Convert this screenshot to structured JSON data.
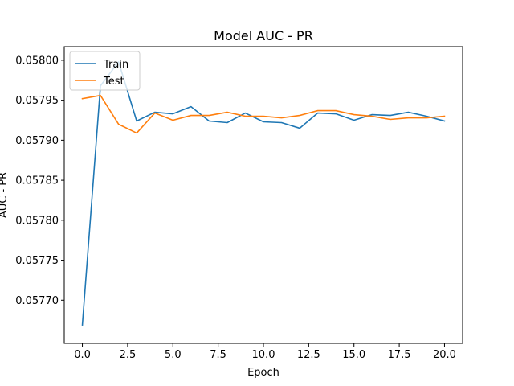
{
  "chart_data": {
    "type": "line",
    "title": "Model AUC - PR",
    "xlabel": "Epoch",
    "ylabel": "AUC - PR",
    "xlim": [
      -1.0,
      21.0
    ],
    "ylim": [
      0.057646,
      0.058017
    ],
    "xticks": [
      0.0,
      2.5,
      5.0,
      7.5,
      10.0,
      12.5,
      15.0,
      17.5,
      20.0
    ],
    "xtick_labels": [
      "0.0",
      "2.5",
      "5.0",
      "7.5",
      "10.0",
      "12.5",
      "15.0",
      "17.5",
      "20.0"
    ],
    "yticks": [
      0.0577,
      0.05775,
      0.0578,
      0.05785,
      0.0579,
      0.05795,
      0.058
    ],
    "ytick_labels": [
      "0.05770",
      "0.05775",
      "0.05780",
      "0.05785",
      "0.05790",
      "0.05795",
      "0.05800"
    ],
    "x": [
      0,
      1,
      2,
      3,
      4,
      5,
      6,
      7,
      8,
      9,
      10,
      11,
      12,
      13,
      14,
      15,
      16,
      17,
      18,
      19,
      20
    ],
    "series": [
      {
        "name": "Train",
        "color": "#1f77b4",
        "values": [
          0.057669,
          0.057968,
          0.057998,
          0.057924,
          0.057935,
          0.057933,
          0.057942,
          0.057924,
          0.057922,
          0.057934,
          0.057923,
          0.057922,
          0.057915,
          0.057934,
          0.057933,
          0.057925,
          0.057932,
          0.057931,
          0.057935,
          0.05793,
          0.057924
        ]
      },
      {
        "name": "Test",
        "color": "#ff7f0e",
        "values": [
          0.057952,
          0.057956,
          0.05792,
          0.057909,
          0.057934,
          0.057925,
          0.057931,
          0.057931,
          0.057935,
          0.05793,
          0.05793,
          0.057928,
          0.057931,
          0.057937,
          0.057937,
          0.057932,
          0.05793,
          0.057926,
          0.057928,
          0.057928,
          0.05793
        ]
      }
    ],
    "grid": false,
    "legend_position": "upper left"
  }
}
